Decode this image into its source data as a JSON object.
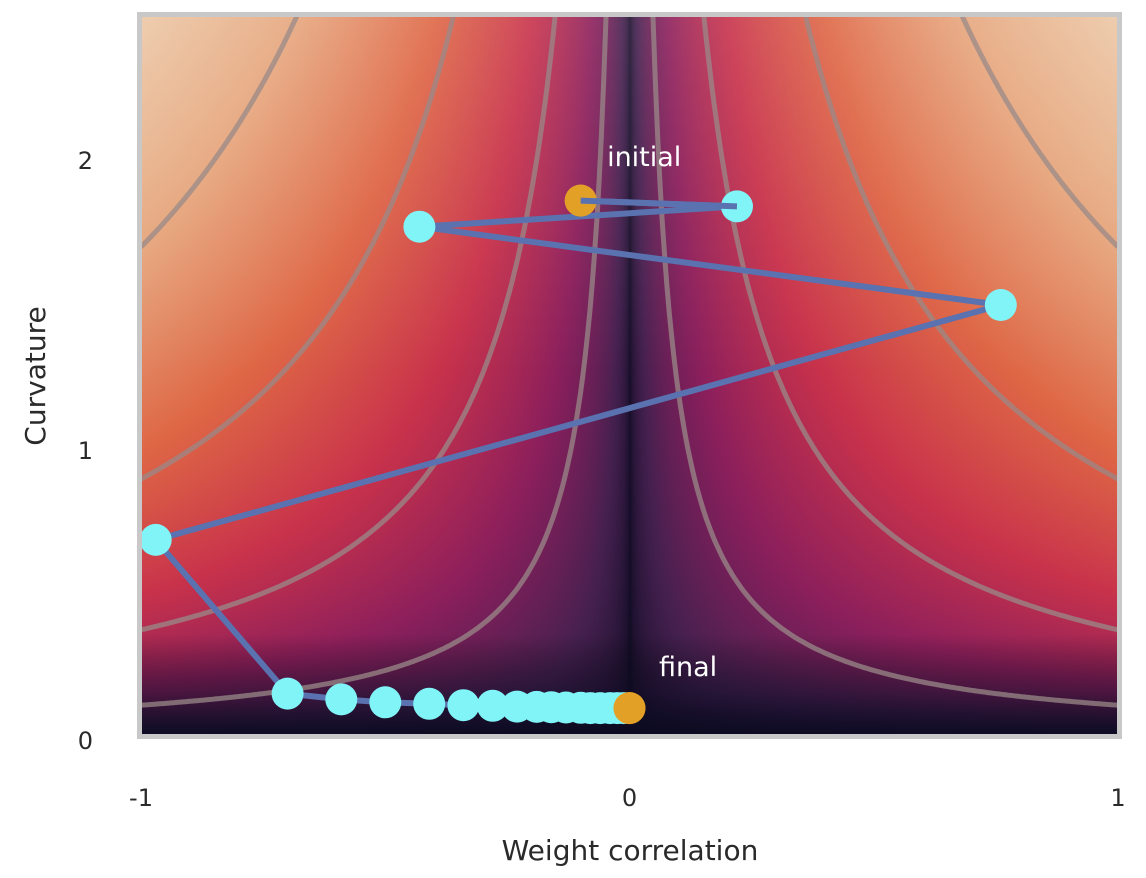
{
  "chart_data": {
    "type": "line",
    "title": "",
    "xlabel": "Weight correlation",
    "ylabel": "Curvature",
    "xlim": [
      -1,
      1
    ],
    "ylim": [
      0,
      2.5
    ],
    "xticks": [
      {
        "value": -1,
        "label": "-1"
      },
      {
        "value": 0,
        "label": "0"
      },
      {
        "value": 1,
        "label": "1"
      }
    ],
    "yticks": [
      {
        "value": 0,
        "label": "0"
      },
      {
        "value": 1,
        "label": "1"
      },
      {
        "value": 2,
        "label": "2"
      }
    ],
    "grid": false,
    "background": "heatmap of a loss surface, dark near x=0 and low curvature, light toward the corners",
    "colormap": [
      "#0a0a1f",
      "#45204f",
      "#8c1f5c",
      "#c8324b",
      "#de6645",
      "#e6a57c",
      "#eccbaa"
    ],
    "contour_levels": [
      0.12,
      0.38,
      0.9,
      1.7
    ],
    "contour_color": "#9a8a88",
    "trajectory": {
      "line_color": "#5a72b0",
      "point_color": "#80f4f7",
      "endpoint_color": "#e3a026",
      "points": [
        {
          "x": -0.1,
          "y": 1.86
        },
        {
          "x": 0.22,
          "y": 1.84
        },
        {
          "x": -0.43,
          "y": 1.77
        },
        {
          "x": 0.76,
          "y": 1.5
        },
        {
          "x": -0.97,
          "y": 0.69
        },
        {
          "x": -0.7,
          "y": 0.16
        },
        {
          "x": -0.59,
          "y": 0.14
        },
        {
          "x": -0.5,
          "y": 0.13
        },
        {
          "x": -0.41,
          "y": 0.125
        },
        {
          "x": -0.34,
          "y": 0.12
        },
        {
          "x": -0.28,
          "y": 0.118
        },
        {
          "x": -0.23,
          "y": 0.115
        },
        {
          "x": -0.19,
          "y": 0.114
        },
        {
          "x": -0.16,
          "y": 0.113
        },
        {
          "x": -0.13,
          "y": 0.112
        },
        {
          "x": -0.1,
          "y": 0.111
        },
        {
          "x": -0.08,
          "y": 0.11
        },
        {
          "x": -0.06,
          "y": 0.11
        },
        {
          "x": -0.04,
          "y": 0.11
        },
        {
          "x": -0.025,
          "y": 0.11
        },
        {
          "x": -0.012,
          "y": 0.11
        },
        {
          "x": 0.0,
          "y": 0.11
        }
      ]
    },
    "annotations": [
      {
        "text": "initial",
        "x": 0.03,
        "y": 1.98
      },
      {
        "text": "final",
        "x": 0.12,
        "y": 0.22
      }
    ]
  }
}
